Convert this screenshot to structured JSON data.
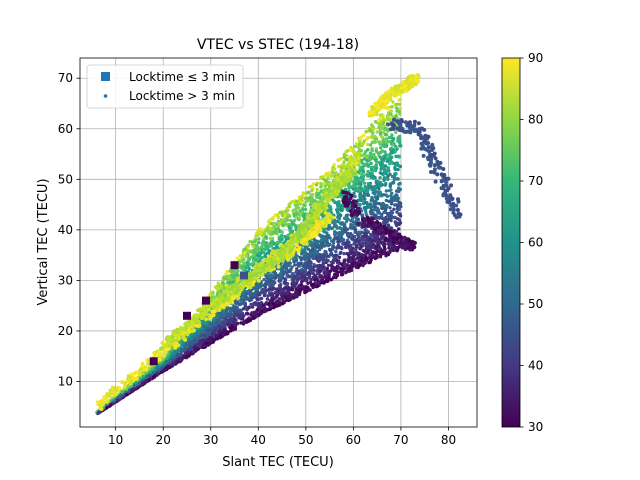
{
  "chart_data": {
    "type": "scatter",
    "title": "VTEC vs STEC (194-18)",
    "xlabel": "Slant TEC (TECU)",
    "ylabel": "Vertical TEC (TECU)",
    "xlim": [
      2.5,
      86
    ],
    "ylim": [
      1,
      74
    ],
    "x_ticks": [
      10,
      20,
      30,
      40,
      50,
      60,
      70,
      80
    ],
    "y_ticks": [
      10,
      20,
      30,
      40,
      50,
      60,
      70
    ],
    "grid": true,
    "legend_position": "top-left",
    "legend": [
      {
        "label": "Locktime ≤ 3 min",
        "marker": "square"
      },
      {
        "label": "Locktime > 3 min",
        "marker": "dot"
      }
    ],
    "colorbar": {
      "range": [
        30,
        90
      ],
      "ticks": [
        30,
        40,
        50,
        60,
        70,
        80,
        90
      ],
      "colormap": "viridis"
    },
    "series_summary": {
      "locktime_gt_3": {
        "cone_lower_edge": [
          [
            6,
            3.5
          ],
          [
            20,
            12
          ],
          [
            40,
            23
          ],
          [
            55,
            30
          ],
          [
            72,
            37
          ]
        ],
        "cone_upper_edge": [
          [
            6,
            4
          ],
          [
            20,
            15
          ],
          [
            40,
            40
          ],
          [
            55,
            52
          ],
          [
            73,
            70
          ]
        ],
        "high_elevation_tracks": [
          {
            "points": [
              [
                6,
                5
              ],
              [
                20,
                16
              ],
              [
                35,
                27
              ],
              [
                50,
                38
              ],
              [
                55,
                43
              ]
            ],
            "elevation": 88
          },
          {
            "points": [
              [
                20,
                17
              ],
              [
                35,
                29
              ],
              [
                50,
                40
              ],
              [
                61,
                55
              ]
            ],
            "elevation": 85
          },
          {
            "points": [
              [
                30,
                25
              ],
              [
                45,
                35
              ],
              [
                55,
                47
              ],
              [
                60,
                52
              ]
            ],
            "elevation": 82
          },
          {
            "points": [
              [
                64,
                63
              ],
              [
                68,
                67
              ],
              [
                72,
                69
              ],
              [
                73,
                70
              ]
            ],
            "elevation": 88
          }
        ],
        "low_elevation_tracks": [
          {
            "points": [
              [
                58,
                47
              ],
              [
                62,
                42
              ],
              [
                66,
                40
              ],
              [
                70,
                38
              ],
              [
                72,
                37
              ]
            ],
            "elevation": 32
          },
          {
            "points": [
              [
                68,
                61
              ],
              [
                74,
                60
              ],
              [
                76,
                55
              ],
              [
                79,
                49
              ],
              [
                82,
                43
              ]
            ],
            "elevation": 45
          }
        ]
      },
      "locktime_le_3": [
        {
          "x": 35,
          "y": 33,
          "elevation": 30
        },
        {
          "x": 18,
          "y": 14,
          "elevation": 30
        },
        {
          "x": 25,
          "y": 23,
          "elevation": 30
        },
        {
          "x": 29,
          "y": 26,
          "elevation": 30
        },
        {
          "x": 37,
          "y": 31,
          "elevation": 45
        }
      ]
    }
  }
}
